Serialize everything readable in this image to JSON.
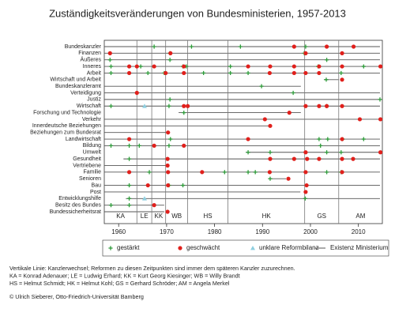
{
  "chart_data": {
    "type": "timeline",
    "title": "Zuständigkeitsveränderungen von Bundesministerien, 1957-2013",
    "categories": [
      "Bundeskanzler",
      "Finanzen",
      "Äußeres",
      "Inneres",
      "Arbeit",
      "Wirtschaft und Arbeit",
      "Bundeskanzleramt",
      "Verteidigung",
      "Justiz",
      "Wirtschaft",
      "Forschung und Technologie",
      "Verkehr",
      "Innerdeutsche Beziehungen",
      "Beziehungen zum Bundesrat",
      "Landwirtschaft",
      "Bildung",
      "Umwelt",
      "Gesundheit",
      "Vertriebene",
      "Familie",
      "Senioren",
      "Bau",
      "Post",
      "Entwicklungshilfe",
      "Besitz des Bundes",
      "Bundessicherheitsrat"
    ],
    "xlim": [
      1957,
      2015
    ],
    "xticks": [
      1960,
      1970,
      1980,
      1990,
      2000,
      2010
    ],
    "chancellors": {
      "labels": [
        "KA",
        "LE",
        "KK",
        "WB",
        "HS",
        "HK",
        "GS",
        "AM"
      ],
      "changes": [
        1963.8,
        1966.9,
        1969.8,
        1974.4,
        1982.8,
        1998.8,
        2005.9
      ],
      "color": "#777777"
    },
    "existence": {
      "name": "Existenz Ministerium",
      "color": "#555555",
      "start": [
        1957,
        1957,
        1957,
        1957,
        1957,
        2002.8,
        1957,
        1957,
        1957,
        1957,
        1972.5,
        1957,
        1957,
        1957,
        1957,
        1957,
        1986.5,
        1961,
        1957,
        1957,
        1991.5,
        1957,
        1957,
        1961.5,
        1957,
        1957
      ],
      "end": [
        2014.5,
        2014.5,
        2014.5,
        2014.5,
        2014.5,
        2005.9,
        1998,
        2014.5,
        2014.5,
        2014.5,
        1998,
        2014.5,
        1991.6,
        1970.3,
        2014.5,
        2014.5,
        2014.5,
        2014.5,
        1970.2,
        2014.5,
        1994.9,
        2014.5,
        1997.9,
        2014.5,
        1969.5,
        1969.5
      ]
    },
    "series": [
      {
        "name": "gestärkt",
        "marker": "plus",
        "color": "#2e9a3a",
        "x": [
          1967.4,
          1975.2,
          1985.4,
          1999.0,
          1970.7,
          1998.7,
          1958.2,
          1970.7,
          2003.4,
          1958.4,
          1964.6,
          1973.4,
          1974.1,
          1983.3,
          2001.6,
          2011.1,
          1958.4,
          1966.1,
          1969.5,
          1977.7,
          1983.3,
          1987.0,
          2006.4,
          2003.3,
          1989.8,
          1996.4,
          1970.7,
          2014.5,
          1958.4,
          1970.5,
          2003.4,
          1973.6,
          1970.8,
          2001.8,
          2003.6,
          2006.7,
          2011.1,
          1958.4,
          1962.2,
          1964.3,
          1970.5,
          2002.1,
          1987.0,
          1991.6,
          2003.4,
          2006.4,
          1962.2,
          1966.4,
          1982.1,
          1987.0,
          1988.5,
          2003.4,
          2006.4,
          1991.6,
          1962.2,
          1970.5,
          1973.4,
          1962.2,
          1998.9,
          1958.4,
          1962.2
        ],
        "y": [
          "Bundeskanzler",
          "Bundeskanzler",
          "Bundeskanzler",
          "Bundeskanzler",
          "Finanzen",
          "Finanzen",
          "Äußeres",
          "Äußeres",
          "Äußeres",
          "Inneres",
          "Inneres",
          "Inneres",
          "Inneres",
          "Inneres",
          "Inneres",
          "Inneres",
          "Arbeit",
          "Arbeit",
          "Arbeit",
          "Arbeit",
          "Arbeit",
          "Arbeit",
          "Arbeit",
          "Wirtschaft und Arbeit",
          "Bundeskanzleramt",
          "Verteidigung",
          "Justiz",
          "Justiz",
          "Wirtschaft",
          "Wirtschaft",
          "Wirtschaft",
          "Forschung und Technologie",
          "Landwirtschaft",
          "Landwirtschaft",
          "Landwirtschaft",
          "Landwirtschaft",
          "Landwirtschaft",
          "Bildung",
          "Bildung",
          "Bildung",
          "Bildung",
          "Bildung",
          "Umwelt",
          "Umwelt",
          "Umwelt",
          "Umwelt",
          "Gesundheit",
          "Familie",
          "Familie",
          "Familie",
          "Familie",
          "Familie",
          "Familie",
          "Senioren",
          "Bau",
          "Bau",
          "Bau",
          "Entwicklungshilfe",
          "Entwicklungshilfe",
          "Besitz des Bundes",
          "Besitz des Bundes"
        ]
      },
      {
        "name": "geschwächt",
        "marker": "dot",
        "color": "#e0201c",
        "x": [
          1996.6,
          2003.4,
          2009.0,
          1958.2,
          1970.8,
          1999.0,
          2006.6,
          1962.2,
          1963.8,
          1967.4,
          1973.6,
          1987.0,
          1991.6,
          1996.6,
          2001.8,
          2006.6,
          2014.6,
          1962.2,
          1969.8,
          1973.6,
          1991.5,
          1996.6,
          1999.0,
          2001.8,
          2006.6,
          1963.8,
          1973.6,
          1974.4,
          1999.0,
          2001.8,
          2003.4,
          2006.6,
          1995.6,
          1990.5,
          2010.3,
          2014.6,
          1991.6,
          1970.3,
          1962.2,
          1987.0,
          2006.6,
          1967.4,
          1973.6,
          1999.0,
          2014.6,
          1970.2,
          1991.6,
          1996.6,
          1999.3,
          2001.8,
          2006.6,
          2008.9,
          1970.2,
          1962.2,
          1970.3,
          1977.4,
          1991.5,
          1999.0,
          2006.6,
          1995.4,
          1966.1,
          1970.3,
          1999.2,
          1999.0,
          1967.4,
          1970.2
        ],
        "y": [
          "Bundeskanzler",
          "Bundeskanzler",
          "Bundeskanzler",
          "Finanzen",
          "Finanzen",
          "Finanzen",
          "Finanzen",
          "Inneres",
          "Inneres",
          "Inneres",
          "Inneres",
          "Inneres",
          "Inneres",
          "Inneres",
          "Inneres",
          "Inneres",
          "Inneres",
          "Arbeit",
          "Arbeit",
          "Arbeit",
          "Arbeit",
          "Arbeit",
          "Arbeit",
          "Arbeit",
          "Wirtschaft und Arbeit",
          "Verteidigung",
          "Wirtschaft",
          "Wirtschaft",
          "Wirtschaft",
          "Wirtschaft",
          "Wirtschaft",
          "Wirtschaft",
          "Forschung und Technologie",
          "Verkehr",
          "Verkehr",
          "Verkehr",
          "Innerdeutsche Beziehungen",
          "Beziehungen zum Bundesrat",
          "Landwirtschaft",
          "Landwirtschaft",
          "Landwirtschaft",
          "Bildung",
          "Bildung",
          "Umwelt",
          "Umwelt",
          "Gesundheit",
          "Gesundheit",
          "Gesundheit",
          "Gesundheit",
          "Gesundheit",
          "Gesundheit",
          "Gesundheit",
          "Vertriebene",
          "Familie",
          "Familie",
          "Familie",
          "Familie",
          "Familie",
          "Familie",
          "Senioren",
          "Bau",
          "Bau",
          "Bau",
          "Post",
          "Besitz des Bundes",
          "Bundessicherheitsrat"
        ]
      },
      {
        "name": "unklare Reformbilanz",
        "marker": "triangle",
        "color": "#8fcfe0",
        "x": [
          1965.4,
          1965.4
        ],
        "y": [
          "Wirtschaft",
          "Entwicklungshilfe"
        ]
      }
    ],
    "notes": [
      "Vertikale Linie: Kanzlerwechsel; Reformen zu diesen Zeitpunkten sind immer dem späteren Kanzler zuzurechnen.",
      "KA = Konrad Adenauer; LE = Ludwig Erhard; KK = Kurt Georg Kiesinger; WB = Willy Brandt",
      "HS = Helmut Schmidt; HK = Helmut Kohl; GS = Gerhard Schröder; AM = Angela Merkel"
    ],
    "credit": "© Ulrich Sieberer, Otto-Friedrich-Universität Bamberg"
  }
}
